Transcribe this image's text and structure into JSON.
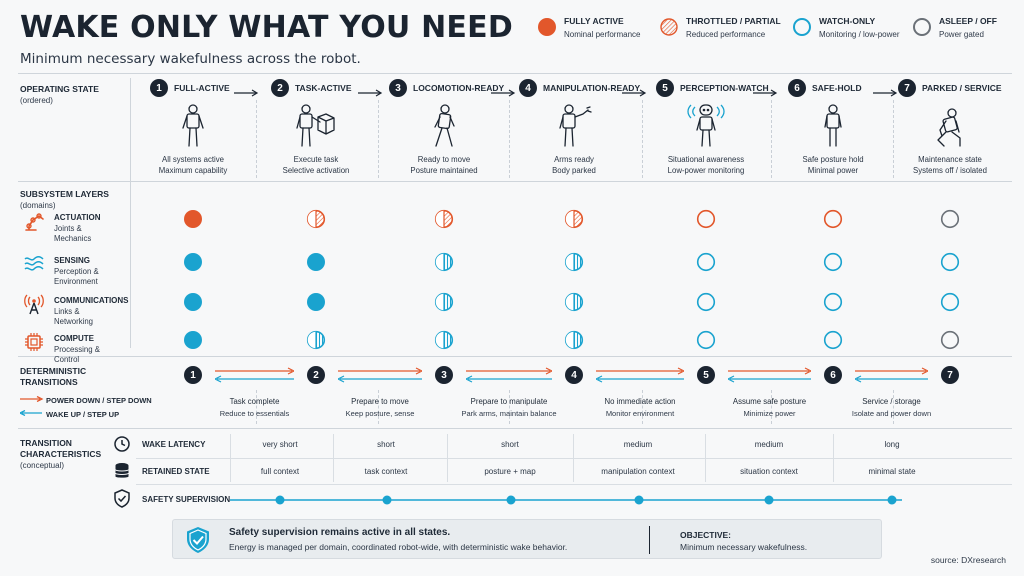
{
  "header": {
    "title": "WAKE ONLY WHAT YOU NEED",
    "subtitle": "Minimum necessary wakefulness across the robot."
  },
  "legend": [
    {
      "title": "FULLY ACTIVE",
      "sub": "Nominal performance",
      "kind": "full"
    },
    {
      "title": "THROTTLED / PARTIAL",
      "sub": "Reduced performance",
      "kind": "hatched"
    },
    {
      "title": "WATCH-ONLY",
      "sub": "Monitoring / low-power",
      "kind": "ring"
    },
    {
      "title": "ASLEEP / OFF",
      "sub": "Power gated",
      "kind": "off"
    }
  ],
  "operating": {
    "label": "OPERATING STATE",
    "sub": "(ordered)",
    "states": [
      {
        "num": "1",
        "name": "FULL-ACTIVE",
        "desc1": "All systems active",
        "desc2": "Maximum capability",
        "icon": "robot-standing-icon"
      },
      {
        "num": "2",
        "name": "TASK-ACTIVE",
        "desc1": "Execute task",
        "desc2": "Selective activation",
        "icon": "robot-carrying-box-icon"
      },
      {
        "num": "3",
        "name": "LOCOMOTION-READY",
        "desc1": "Ready to move",
        "desc2": "Posture maintained",
        "icon": "robot-walking-icon"
      },
      {
        "num": "4",
        "name": "MANIPULATION-READY",
        "desc1": "Arms ready",
        "desc2": "Body parked",
        "icon": "robot-arm-raised-icon"
      },
      {
        "num": "5",
        "name": "PERCEPTION-WATCH",
        "desc1": "Situational awareness",
        "desc2": "Low-power monitoring",
        "icon": "robot-sensing-icon"
      },
      {
        "num": "6",
        "name": "SAFE-HOLD",
        "desc1": "Safe posture hold",
        "desc2": "Minimal power",
        "icon": "robot-holding-icon"
      },
      {
        "num": "7",
        "name": "PARKED / SERVICE",
        "desc1": "Maintenance state",
        "desc2": "Systems off / isolated",
        "icon": "robot-kneeling-icon"
      }
    ]
  },
  "subsystems": {
    "label": "SUBSYSTEM LAYERS",
    "sub": "(domains)",
    "layers": [
      {
        "title": "ACTUATION",
        "sub1": "Joints &",
        "sub2": "Mechanics",
        "icon": "robot-arm-icon",
        "states": [
          "full",
          "hatched",
          "hatched",
          "hatched",
          "ring",
          "ring",
          "off"
        ]
      },
      {
        "title": "SENSING",
        "sub1": "Perception &",
        "sub2": "Environment",
        "icon": "sensor-waves-icon",
        "states": [
          "full",
          "full",
          "hatched",
          "hatched",
          "ring",
          "ring",
          "ring"
        ]
      },
      {
        "title": "COMMUNICATIONS",
        "sub1": "Links &",
        "sub2": "Networking",
        "icon": "antenna-icon",
        "states": [
          "full",
          "full",
          "hatched",
          "hatched",
          "ring",
          "ring",
          "ring"
        ]
      },
      {
        "title": "COMPUTE",
        "sub1": "Processing &",
        "sub2": "Control",
        "icon": "chip-icon",
        "states": [
          "full",
          "hatched",
          "hatched",
          "hatched",
          "ring",
          "ring",
          "off"
        ]
      }
    ]
  },
  "transitions": {
    "label1": "DETERMINISTIC",
    "label2": "TRANSITIONS",
    "down_label": "POWER DOWN / STEP DOWN",
    "up_label": "WAKE UP / STEP UP",
    "nums": [
      "1",
      "2",
      "3",
      "4",
      "5",
      "6",
      "7"
    ],
    "steps": [
      {
        "title": "Task complete",
        "sub": "Reduce to essentials"
      },
      {
        "title": "Prepare to move",
        "sub": "Keep posture, sense"
      },
      {
        "title": "Prepare to manipulate",
        "sub": "Park arms, maintain balance"
      },
      {
        "title": "No immediate action",
        "sub": "Monitor environment"
      },
      {
        "title": "Assume safe posture",
        "sub": "Minimize power"
      },
      {
        "title": "Service / storage",
        "sub": "Isolate and power down"
      }
    ]
  },
  "characteristics": {
    "label1": "TRANSITION",
    "label2": "CHARACTERISTICS",
    "label3": "(conceptual)",
    "wake_latency": {
      "label": "WAKE LATENCY",
      "icon": "clock-icon",
      "values": [
        "very short",
        "short",
        "short",
        "medium",
        "medium",
        "long"
      ]
    },
    "retained_state": {
      "label": "RETAINED STATE",
      "icon": "database-icon",
      "values": [
        "full context",
        "task context",
        "posture + map",
        "manipulation context",
        "situation context",
        "minimal state"
      ]
    },
    "safety": {
      "label": "SAFETY SUPERVISION",
      "icon": "shield-check-icon"
    }
  },
  "footer": {
    "box_title": "Safety supervision remains active in all states.",
    "box_sub": "Energy is managed per domain, coordinated robot-wide, with deterministic wake behavior.",
    "objective_label": "OBJECTIVE:",
    "objective_text": "Minimum necessary wakefulness.",
    "source": "source: DXresearch"
  },
  "colors": {
    "orange": "#e2572b",
    "blue": "#1aa3cf",
    "gray": "#6b7178",
    "dark": "#1b2430"
  }
}
